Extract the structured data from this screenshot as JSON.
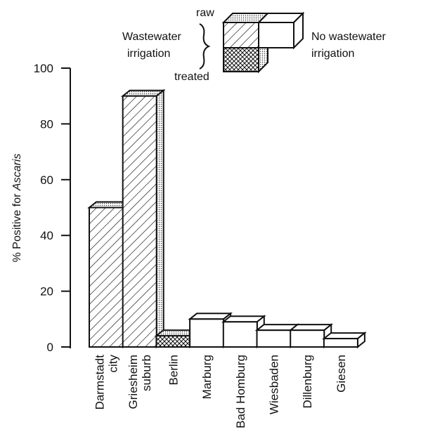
{
  "chart_data": {
    "type": "bar",
    "ylabel_prefix": "% Positive for ",
    "ylabel_italic": "Ascaris",
    "ylim": [
      0,
      100
    ],
    "yticks": [
      0,
      20,
      40,
      60,
      80,
      100
    ],
    "grid": false,
    "legend": {
      "placement": "top-right",
      "raw_label": "raw",
      "treated_label": "treated",
      "wastewater_line1": "Wastewater",
      "wastewater_line2": "irrigation",
      "none_line1": "No wastewater",
      "none_line2": "irrigation"
    },
    "categories": [
      {
        "lines": [
          "Darmstadt",
          "city"
        ],
        "value": 50,
        "irrigation": "raw"
      },
      {
        "lines": [
          "Griesheim",
          "suburb"
        ],
        "value": 90,
        "irrigation": "raw"
      },
      {
        "lines": [
          "Berlin"
        ],
        "value": 4,
        "irrigation": "treated"
      },
      {
        "lines": [
          "Marburg"
        ],
        "value": 10,
        "irrigation": "none"
      },
      {
        "lines": [
          "Bad Homburg"
        ],
        "value": 9,
        "irrigation": "none"
      },
      {
        "lines": [
          "Wiesbaden"
        ],
        "value": 6,
        "irrigation": "none"
      },
      {
        "lines": [
          "Dillenburg"
        ],
        "value": 6,
        "irrigation": "none"
      },
      {
        "lines": [
          "Giesen"
        ],
        "value": 3,
        "irrigation": "none"
      }
    ]
  }
}
